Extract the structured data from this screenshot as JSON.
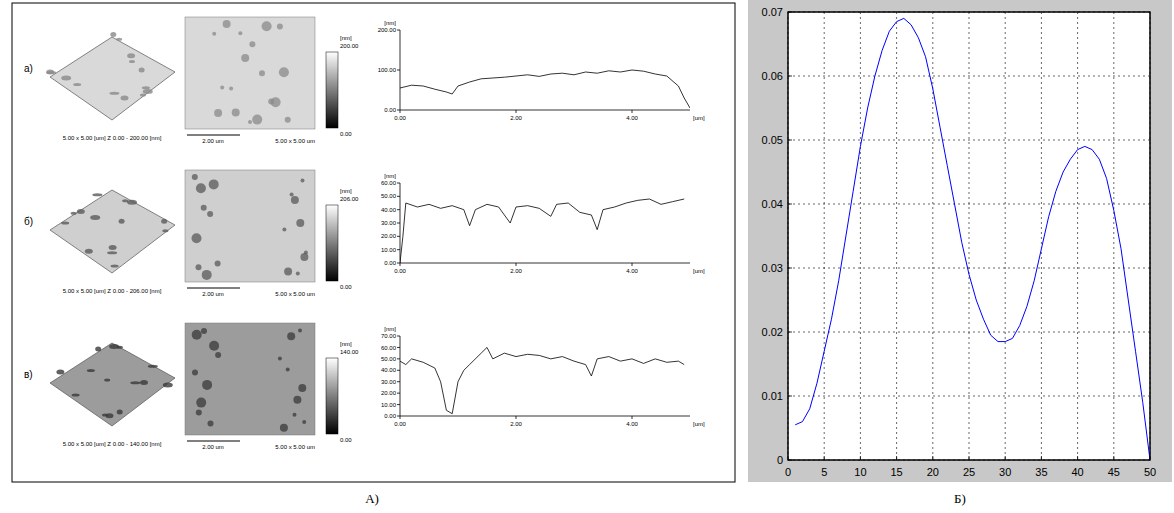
{
  "figure": {
    "panel_labels": [
      "А)",
      "Б)"
    ],
    "rows": [
      {
        "label": "а)",
        "caption_3d": "5.00 x 5.00 [um]  Z 0.00 - 200.00 [nm]",
        "scalebar": "2.00 um",
        "caption_2d": "5.00 x 5.00 um",
        "colorbar_max": "200.00",
        "colorbar_unit": "[nm]",
        "colorbar_min": "0.00"
      },
      {
        "label": "б)",
        "caption_3d": "5.00 x 5.00 [um]  Z 0.00 - 206.00 [nm]",
        "scalebar": "2.00 um",
        "caption_2d": "5.00 x 5.00 um",
        "colorbar_max": "206.00",
        "colorbar_unit": "[nm]",
        "colorbar_min": "0.00"
      },
      {
        "label": "в)",
        "caption_3d": "5.00 x 5.00 [um]  Z 0.00 - 140.00 [nm]",
        "scalebar": "2.00 um",
        "caption_2d": "5.00 x 5.00 um",
        "colorbar_max": "140.00",
        "colorbar_unit": "[nm]",
        "colorbar_min": "0.00"
      }
    ]
  },
  "chart_data": [
    {
      "type": "line",
      "xlabel": "[um]",
      "ylabel": "[nm]",
      "color": "#000000",
      "grid": false,
      "x": [
        0,
        0.2,
        0.4,
        0.6,
        0.8,
        0.9,
        1.0,
        1.2,
        1.4,
        1.6,
        1.8,
        2.0,
        2.2,
        2.4,
        2.6,
        2.8,
        3.0,
        3.2,
        3.4,
        3.6,
        3.8,
        4.0,
        4.2,
        4.4,
        4.6,
        4.8,
        4.9,
        5.0
      ],
      "values": [
        55,
        62,
        60,
        52,
        45,
        40,
        60,
        70,
        78,
        80,
        82,
        85,
        88,
        84,
        90,
        92,
        88,
        95,
        92,
        98,
        95,
        100,
        97,
        90,
        85,
        60,
        30,
        5
      ],
      "xlim": [
        0,
        5
      ],
      "ylim": [
        0,
        200
      ],
      "xticks": [
        {
          "value": 0,
          "label": "0.00"
        },
        {
          "value": 2,
          "label": "2.00"
        },
        {
          "value": 4,
          "label": "4.00"
        }
      ],
      "yticks": [
        {
          "value": 0,
          "label": "0.00"
        },
        {
          "value": 100,
          "label": "100.00"
        },
        {
          "value": 200,
          "label": "200.00"
        }
      ]
    },
    {
      "type": "line",
      "xlabel": "[um]",
      "ylabel": "[nm]",
      "color": "#000000",
      "grid": false,
      "x": [
        0,
        0.05,
        0.1,
        0.3,
        0.5,
        0.7,
        0.9,
        1.1,
        1.2,
        1.3,
        1.5,
        1.7,
        1.9,
        2.0,
        2.2,
        2.4,
        2.6,
        2.7,
        2.9,
        3.1,
        3.3,
        3.4,
        3.5,
        3.7,
        3.9,
        4.1,
        4.3,
        4.5,
        4.7,
        4.9
      ],
      "values": [
        0,
        20,
        45,
        42,
        44,
        41,
        43,
        40,
        28,
        40,
        44,
        42,
        30,
        42,
        43,
        41,
        35,
        44,
        45,
        38,
        36,
        25,
        40,
        42,
        45,
        47,
        48,
        44,
        46,
        48
      ],
      "xlim": [
        0,
        5
      ],
      "ylim": [
        0,
        60
      ],
      "xticks": [
        {
          "value": 0,
          "label": "0.00"
        },
        {
          "value": 2,
          "label": "2.00"
        },
        {
          "value": 4,
          "label": "4.00"
        }
      ],
      "yticks": [
        {
          "value": 0,
          "label": "0.00"
        },
        {
          "value": 10,
          "label": "10.00"
        },
        {
          "value": 20,
          "label": "20.00"
        },
        {
          "value": 30,
          "label": "30.00"
        },
        {
          "value": 40,
          "label": "40.00"
        },
        {
          "value": 50,
          "label": "50.00"
        },
        {
          "value": 60,
          "label": "60.00"
        }
      ]
    },
    {
      "type": "line",
      "xlabel": "[um]",
      "ylabel": "[nm]",
      "color": "#000000",
      "grid": false,
      "x": [
        0,
        0.1,
        0.2,
        0.4,
        0.6,
        0.7,
        0.8,
        0.9,
        1.0,
        1.1,
        1.2,
        1.4,
        1.5,
        1.6,
        1.8,
        2.0,
        2.2,
        2.4,
        2.6,
        2.8,
        3.0,
        3.2,
        3.3,
        3.4,
        3.6,
        3.8,
        4.0,
        4.2,
        4.4,
        4.6,
        4.8,
        4.9
      ],
      "values": [
        48,
        45,
        50,
        47,
        42,
        30,
        5,
        2,
        30,
        40,
        45,
        55,
        60,
        50,
        55,
        52,
        54,
        53,
        50,
        52,
        48,
        45,
        35,
        50,
        52,
        48,
        50,
        46,
        50,
        47,
        48,
        45
      ],
      "xlim": [
        0,
        5
      ],
      "ylim": [
        0,
        70
      ],
      "xticks": [
        {
          "value": 0,
          "label": "0.00"
        },
        {
          "value": 2,
          "label": "2.00"
        },
        {
          "value": 4,
          "label": "4.00"
        }
      ],
      "yticks": [
        {
          "value": 0,
          "label": "0.00"
        },
        {
          "value": 10,
          "label": "10.00"
        },
        {
          "value": 20,
          "label": "20.00"
        },
        {
          "value": 30,
          "label": "30.00"
        },
        {
          "value": 40,
          "label": "40.00"
        },
        {
          "value": 50,
          "label": "50.00"
        },
        {
          "value": 60,
          "label": "60.00"
        },
        {
          "value": 70,
          "label": "70.00"
        }
      ]
    },
    {
      "type": "line",
      "color": "#0000ff",
      "grid": true,
      "x": [
        1,
        2,
        3,
        4,
        5,
        6,
        7,
        8,
        9,
        10,
        11,
        12,
        13,
        14,
        15,
        16,
        17,
        18,
        19,
        20,
        21,
        22,
        23,
        24,
        25,
        26,
        27,
        28,
        29,
        30,
        31,
        32,
        33,
        34,
        35,
        36,
        37,
        38,
        39,
        40,
        41,
        42,
        43,
        44,
        45,
        46,
        47,
        48,
        49,
        50
      ],
      "values": [
        0.0055,
        0.006,
        0.008,
        0.012,
        0.017,
        0.022,
        0.028,
        0.035,
        0.042,
        0.049,
        0.055,
        0.06,
        0.064,
        0.067,
        0.0685,
        0.069,
        0.068,
        0.066,
        0.063,
        0.058,
        0.052,
        0.046,
        0.04,
        0.034,
        0.029,
        0.025,
        0.022,
        0.0195,
        0.0185,
        0.0185,
        0.019,
        0.021,
        0.024,
        0.028,
        0.033,
        0.038,
        0.042,
        0.045,
        0.047,
        0.0485,
        0.049,
        0.0485,
        0.047,
        0.044,
        0.039,
        0.033,
        0.025,
        0.017,
        0.009,
        0
      ],
      "xlim": [
        0,
        50
      ],
      "ylim": [
        0,
        0.07
      ],
      "xticks": [
        0,
        5,
        10,
        15,
        20,
        25,
        30,
        35,
        40,
        45,
        50
      ],
      "yticks": [
        0,
        0.01,
        0.02,
        0.03,
        0.04,
        0.05,
        0.06,
        0.07
      ]
    }
  ]
}
